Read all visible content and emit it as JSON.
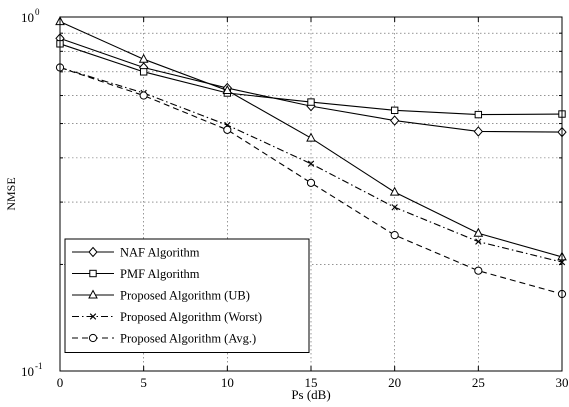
{
  "chart_data": {
    "type": "line",
    "title": "",
    "xlabel": "Ps (dB)",
    "ylabel": "NMSE",
    "x": [
      0,
      5,
      10,
      15,
      20,
      25,
      30
    ],
    "xlim": [
      0,
      30
    ],
    "ylim": [
      0.1,
      1
    ],
    "yscale": "log",
    "grid": true,
    "legend_position": "bottom-left",
    "x_tick_labels": [
      "0",
      "5",
      "10",
      "15",
      "20",
      "25",
      "30"
    ],
    "y_tick_labels": [
      "10^-1",
      "10^0"
    ],
    "series": [
      {
        "name": "NAF Algorithm",
        "marker": "diamond",
        "dash": "solid",
        "values": [
          0.87,
          0.72,
          0.63,
          0.56,
          0.51,
          0.475,
          0.473
        ]
      },
      {
        "name": "PMF Algorithm",
        "marker": "square",
        "dash": "solid",
        "values": [
          0.84,
          0.7,
          0.61,
          0.575,
          0.545,
          0.53,
          0.532
        ]
      },
      {
        "name": "Proposed Algorithm (UB)",
        "marker": "triangle",
        "dash": "solid",
        "values": [
          0.97,
          0.76,
          0.62,
          0.455,
          0.32,
          0.245,
          0.21
        ]
      },
      {
        "name": "Proposed Algorithm (Worst)",
        "marker": "x",
        "dash": "dashdot",
        "values": [
          0.72,
          0.61,
          0.495,
          0.385,
          0.29,
          0.232,
          0.203
        ]
      },
      {
        "name": "Proposed Algorithm (Avg.)",
        "marker": "circle",
        "dash": "dashed",
        "values": [
          0.72,
          0.6,
          0.48,
          0.34,
          0.242,
          0.192,
          0.165
        ]
      }
    ]
  }
}
